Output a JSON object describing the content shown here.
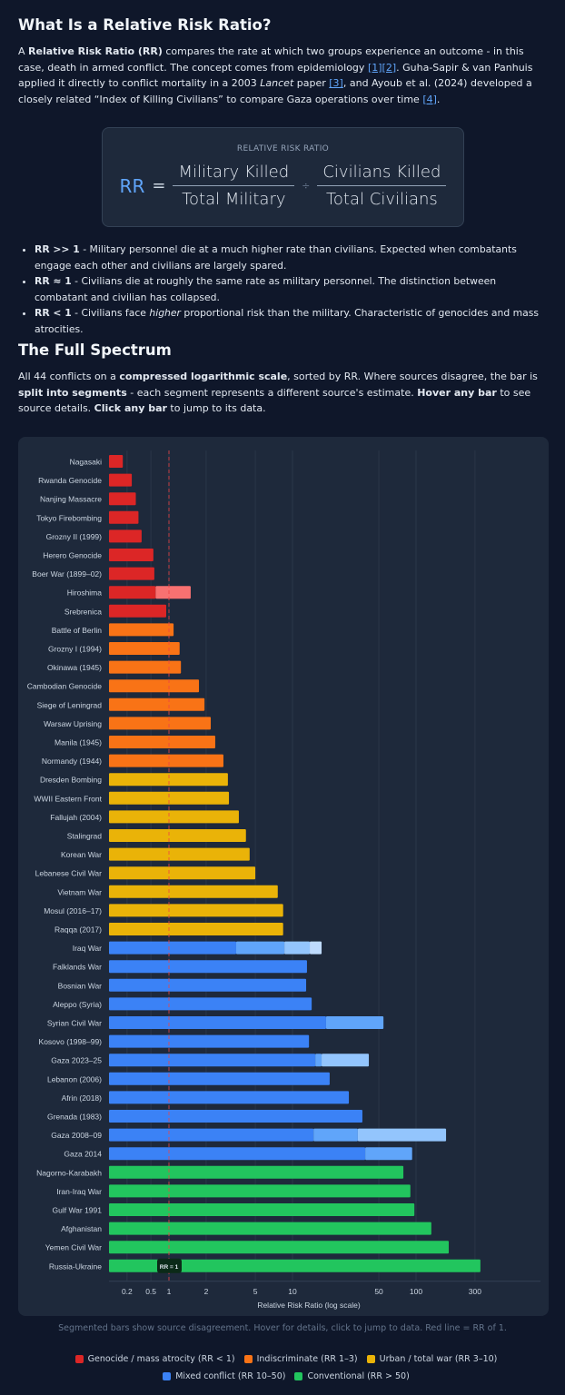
{
  "section1": {
    "title": "What Is a Relative Risk Ratio?",
    "p_a": "A ",
    "p_b": "Relative Risk Ratio (RR)",
    "p_c": " compares the rate at which two groups experience an outcome - in this case, death in armed conflict. The concept comes from epidemiology ",
    "ref1": "[1]",
    "ref2": "[2]",
    "p_d": ". Guha-Sapir & van Panhuis applied it directly to conflict mortality in a 2003 ",
    "p_e": "Lancet",
    "p_f": " paper ",
    "ref3": "[3]",
    "p_g": ", and Ayoub et al. (2024) developed a closely related “Index of Killing Civilians” to compare Gaza operations over time ",
    "ref4": "[4]",
    "p_h": "."
  },
  "formula": {
    "label": "RELATIVE RISK RATIO",
    "rr": "RR",
    "eq": "=",
    "num1": "Military Killed",
    "den1": "Total Military",
    "div": "÷",
    "num2": "Civilians Killed",
    "den2": "Total Civilians"
  },
  "bullets": [
    {
      "key": "RR >> 1",
      "text": " - Military personnel die at a much higher rate than civilians. Expected when combatants engage each other and civilians are largely spared."
    },
    {
      "key": "RR ≈ 1",
      "text": " - Civilians die at roughly the same rate as military personnel. The distinction between combatant and civilian has collapsed."
    },
    {
      "key": "RR < 1",
      "text_a": " - Civilians face ",
      "em": "higher",
      "text_b": " proportional risk than the military. Characteristic of genocides and mass atrocities."
    }
  ],
  "section2": {
    "title": "The Full Spectrum",
    "a": "All 44 conflicts on a ",
    "b": "compressed logarithmic scale",
    "c": ", sorted by RR. Where sources disagree, the bar is ",
    "d": "split into segments",
    "e": " - each segment represents a different source's estimate. ",
    "f": "Hover any bar",
    "g": " to see source details. ",
    "h": "Click any bar",
    "i": " to jump to its data."
  },
  "chart_data": {
    "type": "bar",
    "orientation": "horizontal",
    "xlabel": "Relative Risk Ratio (log scale)",
    "xscale": "compressed log",
    "xlim": [
      0.1,
      400
    ],
    "xticks": [
      0.2,
      0.5,
      1,
      2,
      5,
      10,
      50,
      100,
      300
    ],
    "grid": true,
    "reference_line": {
      "value": 1,
      "label": "RR = 1",
      "color": "#ef4444"
    },
    "category_colors": {
      "genocide": "#dc2626",
      "indiscriminate": "#f97316",
      "urban": "#eab308",
      "mixed": "#3b82f6",
      "conventional": "#22c55e"
    },
    "segment_shades": {
      "genocide": [
        "#dc2626",
        "#f87171"
      ],
      "mixed": [
        "#3b82f6",
        "#60a5fa",
        "#93c5fd",
        "#bfdbfe"
      ]
    },
    "bars": [
      {
        "label": "Nagasaki",
        "cat": "genocide",
        "values": [
          0.17
        ]
      },
      {
        "label": "Rwanda Genocide",
        "cat": "genocide",
        "values": [
          0.24
        ]
      },
      {
        "label": "Nanjing Massacre",
        "cat": "genocide",
        "values": [
          0.28
        ]
      },
      {
        "label": "Tokyo Firebombing",
        "cat": "genocide",
        "values": [
          0.31
        ]
      },
      {
        "label": "Grozny II (1999)",
        "cat": "genocide",
        "values": [
          0.35
        ]
      },
      {
        "label": "Herero Genocide",
        "cat": "genocide",
        "values": [
          0.55
        ]
      },
      {
        "label": "Boer War (1899–02)",
        "cat": "genocide",
        "values": [
          0.57
        ]
      },
      {
        "label": "Hiroshima",
        "cat": "genocide",
        "values": [
          0.6,
          1.5
        ]
      },
      {
        "label": "Srebrenica",
        "cat": "genocide",
        "values": [
          0.9
        ]
      },
      {
        "label": "Battle of Berlin",
        "cat": "indiscriminate",
        "values": [
          1.09
        ]
      },
      {
        "label": "Grozny I (1994)",
        "cat": "indiscriminate",
        "values": [
          1.22
        ]
      },
      {
        "label": "Okinawa (1945)",
        "cat": "indiscriminate",
        "values": [
          1.25
        ]
      },
      {
        "label": "Cambodian Genocide",
        "cat": "indiscriminate",
        "values": [
          1.75
        ]
      },
      {
        "label": "Siege of Leningrad",
        "cat": "indiscriminate",
        "values": [
          1.94
        ]
      },
      {
        "label": "Warsaw Uprising",
        "cat": "indiscriminate",
        "values": [
          2.18
        ]
      },
      {
        "label": "Manila (1945)",
        "cat": "indiscriminate",
        "values": [
          2.37
        ]
      },
      {
        "label": "Normandy (1944)",
        "cat": "indiscriminate",
        "values": [
          2.76
        ]
      },
      {
        "label": "Dresden Bombing",
        "cat": "urban",
        "values": [
          3.0
        ]
      },
      {
        "label": "WWII Eastern Front",
        "cat": "urban",
        "values": [
          3.06
        ]
      },
      {
        "label": "Fallujah (2004)",
        "cat": "urban",
        "values": [
          3.68
        ]
      },
      {
        "label": "Stalingrad",
        "cat": "urban",
        "values": [
          4.2
        ]
      },
      {
        "label": "Korean War",
        "cat": "urban",
        "values": [
          4.5
        ]
      },
      {
        "label": "Lebanese Civil War",
        "cat": "urban",
        "values": [
          5.0
        ]
      },
      {
        "label": "Vietnam War",
        "cat": "urban",
        "values": [
          7.6
        ]
      },
      {
        "label": "Mosul (2016–17)",
        "cat": "urban",
        "values": [
          8.4
        ]
      },
      {
        "label": "Raqqa (2017)",
        "cat": "urban",
        "values": [
          8.4
        ]
      },
      {
        "label": "Iraq War",
        "cat": "mixed",
        "values": [
          3.5,
          8.6,
          13.8,
          17.2
        ]
      },
      {
        "label": "Falklands War",
        "cat": "mixed",
        "values": [
          13.1
        ]
      },
      {
        "label": "Bosnian War",
        "cat": "mixed",
        "values": [
          12.9
        ]
      },
      {
        "label": "Aleppo (Syria)",
        "cat": "mixed",
        "values": [
          14.3
        ]
      },
      {
        "label": "Syrian Civil War",
        "cat": "mixed",
        "values": [
          18.7,
          54.5
        ]
      },
      {
        "label": "Kosovo (1998–99)",
        "cat": "mixed",
        "values": [
          13.6
        ]
      },
      {
        "label": "Gaza 2023–25",
        "cat": "mixed",
        "values": [
          15.3,
          17.2,
          41.5
        ]
      },
      {
        "label": "Lebanon (2006)",
        "cat": "mixed",
        "values": [
          20
        ]
      },
      {
        "label": "Afrin (2018)",
        "cat": "mixed",
        "values": [
          28.6
        ]
      },
      {
        "label": "Grenada (1983)",
        "cat": "mixed",
        "values": [
          36.8
        ]
      },
      {
        "label": "Gaza 2008–09",
        "cat": "mixed",
        "values": [
          14.8,
          33.8,
          175
        ]
      },
      {
        "label": "Gaza 2014",
        "cat": "mixed",
        "values": [
          38.8,
          93
        ]
      },
      {
        "label": "Nagorno-Karabakh",
        "cat": "conventional",
        "values": [
          79
        ]
      },
      {
        "label": "Iran-Iraq War",
        "cat": "conventional",
        "values": [
          90
        ]
      },
      {
        "label": "Gulf War 1991",
        "cat": "conventional",
        "values": [
          97
        ]
      },
      {
        "label": "Afghanistan",
        "cat": "conventional",
        "values": [
          133
        ]
      },
      {
        "label": "Yemen Civil War",
        "cat": "conventional",
        "values": [
          184
        ]
      },
      {
        "label": "Russia-Ukraine",
        "cat": "conventional",
        "values": [
          332
        ]
      }
    ],
    "legend": [
      {
        "label": "Genocide / mass atrocity (RR < 1)",
        "color": "#dc2626"
      },
      {
        "label": "Indiscriminate (RR 1–3)",
        "color": "#f97316"
      },
      {
        "label": "Urban / total war (RR 3–10)",
        "color": "#eab308"
      },
      {
        "label": "Mixed conflict (RR 10–50)",
        "color": "#3b82f6"
      },
      {
        "label": "Conventional (RR > 50)",
        "color": "#22c55e"
      }
    ],
    "legend_position": "bottom"
  },
  "caption": "Segmented bars show source disagreement. Hover for details, click to jump to data. Red line = RR of 1."
}
